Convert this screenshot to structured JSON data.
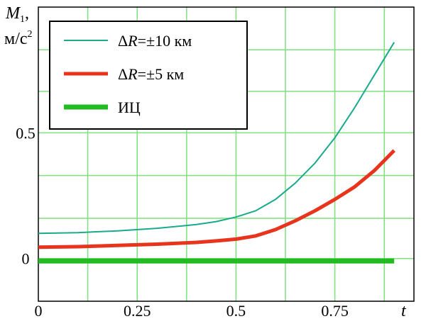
{
  "chart_data": {
    "type": "line",
    "title": "",
    "ylabel_var": "M",
    "ylabel_sub": "1",
    "ylabel_comma": ",",
    "ylabel_unit": "м/с",
    "ylabel_unit_exp": "2",
    "xlabel": "t",
    "xlim": [
      0,
      0.95
    ],
    "ylim": [
      -0.17,
      1.0
    ],
    "x_ticks": [
      0,
      0.25,
      0.5,
      0.75
    ],
    "x_tick_labels": [
      "0",
      "0.25",
      "0.5",
      "0.75"
    ],
    "y_ticks": [
      0,
      0.5
    ],
    "y_tick_labels": [
      "0",
      "0.5"
    ],
    "x_grid": [
      0,
      0.125,
      0.25,
      0.375,
      0.5,
      0.625,
      0.75,
      0.875
    ],
    "y_grid": [
      0.16,
      0.33,
      0.5,
      0.665,
      0.83
    ],
    "grid": true,
    "grid_color": "#7fe07f",
    "legend_position": "top-left",
    "series": [
      {
        "name": "ΔR=±10 км",
        "label_prefix": "Δ",
        "label_var": "R",
        "label_rest": "=±10 км",
        "color": "#1aaa8c",
        "x": [
          0,
          0.1,
          0.2,
          0.3,
          0.4,
          0.45,
          0.5,
          0.55,
          0.6,
          0.65,
          0.7,
          0.75,
          0.8,
          0.85,
          0.9
        ],
        "values": [
          0.1,
          0.103,
          0.11,
          0.12,
          0.135,
          0.147,
          0.165,
          0.19,
          0.235,
          0.3,
          0.38,
          0.48,
          0.6,
          0.73,
          0.86
        ]
      },
      {
        "name": "ΔR=±5 км",
        "label_prefix": "Δ",
        "label_var": "R",
        "label_rest": "=±5 км",
        "color": "#e8341c",
        "x": [
          0,
          0.1,
          0.2,
          0.3,
          0.4,
          0.45,
          0.5,
          0.55,
          0.6,
          0.65,
          0.7,
          0.75,
          0.8,
          0.85,
          0.9
        ],
        "values": [
          0.045,
          0.047,
          0.052,
          0.057,
          0.064,
          0.07,
          0.077,
          0.09,
          0.115,
          0.15,
          0.19,
          0.235,
          0.285,
          0.35,
          0.43
        ]
      },
      {
        "name": "ИЦ",
        "label_prefix": "",
        "label_var": "",
        "label_rest": "ИЦ",
        "color": "#22bb22",
        "x": [
          0,
          0.9
        ],
        "values": [
          -0.01,
          -0.01
        ]
      }
    ]
  }
}
